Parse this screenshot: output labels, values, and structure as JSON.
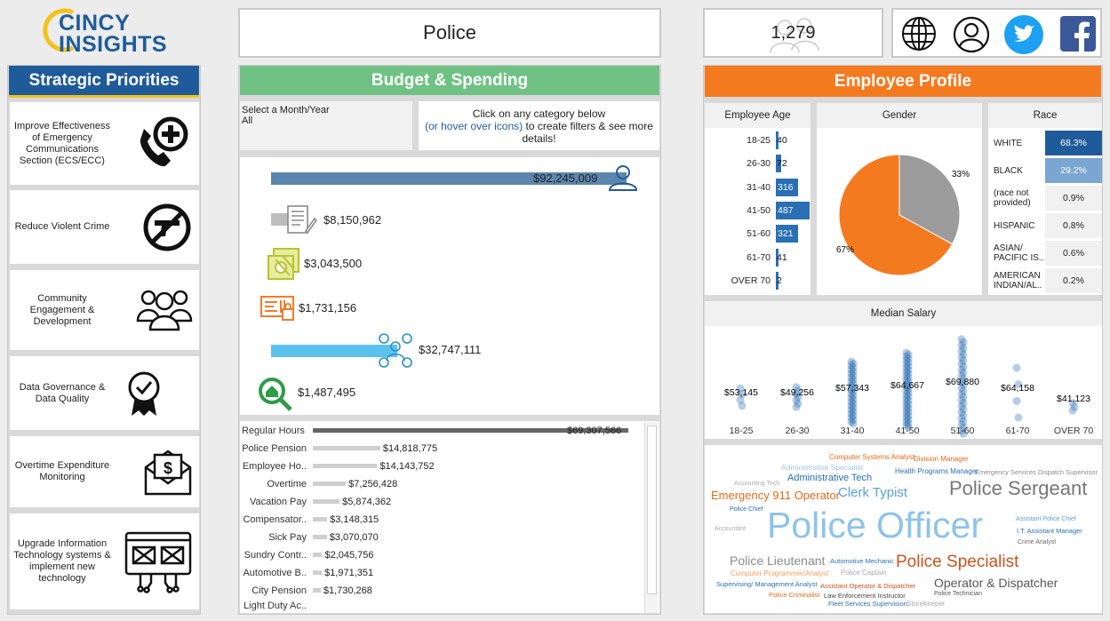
{
  "logo": {
    "line1": "CINCY",
    "line2": "INSIGHTS"
  },
  "department_title": "Police",
  "employee_count": "1,279",
  "social": {
    "globe": "globe-icon",
    "profile": "user-icon",
    "twitter": "twitter-icon",
    "facebook": "facebook-icon"
  },
  "strategic": {
    "title": "Strategic Priorities",
    "items": [
      {
        "label": "Improve Effectiveness of Emergency Communications Section (ECS/ECC)",
        "icon": "phone-plus-icon"
      },
      {
        "label": "Reduce Violent Crime",
        "icon": "no-gun-icon"
      },
      {
        "label": "Community Engagement & Development",
        "icon": "people-icon"
      },
      {
        "label": "Data Governance & Data Quality",
        "icon": "ribbon-check-icon"
      },
      {
        "label": "Overtime Expenditure Monitoring",
        "icon": "money-envelope-icon"
      },
      {
        "label": "Upgrade Information Technology systems & implement new technology",
        "icon": "circuit-screen-icon"
      }
    ]
  },
  "budget": {
    "title": "Budget & Spending",
    "filter_label": "Select a Month/Year",
    "filter_value": "All",
    "hint_line1": "Click on any category below",
    "hint_link": "(or hover over icons)",
    "hint_line2": " to create filters & see more details!",
    "categories": [
      {
        "value": 92245009,
        "label": "$92,245,009",
        "color": "#5c86ad",
        "icon": "personnel-icon"
      },
      {
        "value": 8150962,
        "label": "$8,150,962",
        "color": "#bdbdbd",
        "icon": "contract-icon"
      },
      {
        "value": 3043500,
        "label": "$3,043,500",
        "color": "#b6c330",
        "icon": "fixed-assets-icon"
      },
      {
        "value": 1731156,
        "label": "$1,731,156",
        "color": "#f07c2c",
        "icon": "materials-icon"
      },
      {
        "value": 32747111,
        "label": "$32,747,111",
        "color": "#5bc2ee",
        "icon": "benefits-icon"
      },
      {
        "value": 1487495,
        "label": "$1,487,495",
        "color": "#2e9c47",
        "icon": "capital-search-icon"
      }
    ],
    "earnings": [
      {
        "label": "Regular Hours",
        "value": 69307566,
        "text": "$69,307,566"
      },
      {
        "label": "Police Pension",
        "value": 14818775,
        "text": "$14,818,775"
      },
      {
        "label": "Employee Ho..",
        "value": 14143752,
        "text": "$14,143,752"
      },
      {
        "label": "Overtime",
        "value": 7256428,
        "text": "$7,256,428"
      },
      {
        "label": "Vacation Pay",
        "value": 5874362,
        "text": "$5,874,362"
      },
      {
        "label": "Compensator..",
        "value": 3148315,
        "text": "$3,148,315"
      },
      {
        "label": "Sick Pay",
        "value": 3070070,
        "text": "$3,070,070"
      },
      {
        "label": "Sundry Contr..",
        "value": 2045756,
        "text": "$2,045,756"
      },
      {
        "label": "Automotive B..",
        "value": 1971351,
        "text": "$1,971,351"
      },
      {
        "label": "City Pension",
        "value": 1730268,
        "text": "$1,730,268"
      },
      {
        "label": "Light Duty Ac..",
        "value": 0,
        "text": ""
      }
    ]
  },
  "profile": {
    "title": "Employee Profile",
    "age_title": "Employee Age",
    "gender_title": "Gender",
    "race_title": "Race",
    "salary_title": "Median Salary",
    "ages": [
      {
        "label": "18-25",
        "value": 40
      },
      {
        "label": "26-30",
        "value": 72
      },
      {
        "label": "31-40",
        "value": 316
      },
      {
        "label": "41-50",
        "value": 487
      },
      {
        "label": "51-60",
        "value": 321
      },
      {
        "label": "61-70",
        "value": 41
      },
      {
        "label": "OVER 70",
        "value": 2
      }
    ],
    "gender": [
      {
        "value": 67,
        "label": "67%",
        "color": "#f47a20"
      },
      {
        "value": 33,
        "label": "33%",
        "color": "#9b9b9b"
      }
    ],
    "race": [
      {
        "label": "WHITE",
        "value": "68.3%",
        "bg": "#1f5b9a",
        "fg": "#ffffff"
      },
      {
        "label": "BLACK",
        "value": "29.2%",
        "bg": "#7aa6d1",
        "fg": "#ffffff"
      },
      {
        "label": "(race not provided)",
        "value": "0.9%",
        "bg": "#f1f1f1",
        "fg": "#222222"
      },
      {
        "label": "HISPANIC",
        "value": "0.8%",
        "bg": "#f1f1f1",
        "fg": "#222222"
      },
      {
        "label": "ASIAN/ PACIFIC IS..",
        "value": "0.6%",
        "bg": "#f1f1f1",
        "fg": "#222222"
      },
      {
        "label": "AMERICAN INDIAN/AL..",
        "value": "0.2%",
        "bg": "#f1f1f1",
        "fg": "#222222"
      }
    ],
    "salary": [
      {
        "label": "18-25",
        "value": "$53,145"
      },
      {
        "label": "26-30",
        "value": "$49,256"
      },
      {
        "label": "31-40",
        "value": "$57,343"
      },
      {
        "label": "41-50",
        "value": "$64,667"
      },
      {
        "label": "51-60",
        "value": "$69,880"
      },
      {
        "label": "61-70",
        "value": "$64,158"
      },
      {
        "label": "OVER 70",
        "value": "$41,123"
      }
    ],
    "cloud": [
      {
        "t": "Computer Systems Analyst",
        "c": "#e06a1b"
      },
      {
        "t": "Division Manager",
        "c": "#e06a1b"
      },
      {
        "t": "Administrative Specialist",
        "c": "#9ec4e3"
      },
      {
        "t": "Health Programs Manager",
        "c": "#2a6fb5"
      },
      {
        "t": "Emergency Services Dispatch Supervisor",
        "c": "#8a8a8a"
      },
      {
        "t": "Accounting Tech",
        "c": "#aaaaaa"
      },
      {
        "t": "Administrative Tech",
        "c": "#2a6fb5"
      },
      {
        "t": "Emergency 911 Operator",
        "c": "#e06a1b"
      },
      {
        "t": "Clerk Typist",
        "c": "#5aa0d8"
      },
      {
        "t": "Police Sergeant",
        "c": "#777777"
      },
      {
        "t": "Police Chief",
        "c": "#2a6fb5"
      },
      {
        "t": "Accountant",
        "c": "#aaaaaa"
      },
      {
        "t": "Police Officer",
        "c": "#8ec3ea"
      },
      {
        "t": "Assistant Police Chief",
        "c": "#5aa0d8"
      },
      {
        "t": "I.T. Assistant Manager",
        "c": "#2a6fb5"
      },
      {
        "t": "Crime Analyst",
        "c": "#666666"
      },
      {
        "t": "Police Lieutenant",
        "c": "#8a8a8a"
      },
      {
        "t": "Automotive Mechanic",
        "c": "#2a6fb5"
      },
      {
        "t": "Police Specialist",
        "c": "#c9521b"
      },
      {
        "t": "Computer Programmer/Analyst",
        "c": "#f0a060"
      },
      {
        "t": "Police Captain",
        "c": "#aaaaaa"
      },
      {
        "t": "Supervising/ Management Analyst",
        "c": "#2a6fb5"
      },
      {
        "t": "Assistant Operator & Dispatcher",
        "c": "#c9521b"
      },
      {
        "t": "Operator & Dispatcher",
        "c": "#555555"
      },
      {
        "t": "Police Criminalist",
        "c": "#e06a1b"
      },
      {
        "t": "Law Enforcement Instructor",
        "c": "#444444"
      },
      {
        "t": "Police Technician",
        "c": "#555555"
      },
      {
        "t": "Fleet Services Supervision",
        "c": "#2a6fb5"
      },
      {
        "t": "Storekeeper",
        "c": "#aaaaaa"
      }
    ]
  }
}
